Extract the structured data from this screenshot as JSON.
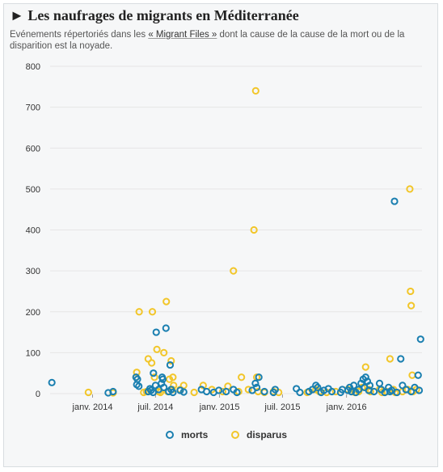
{
  "header": {
    "title": "► Les naufrages de migrants en Méditerranée",
    "subtitle_before": "Evénements répertoriés dans les ",
    "subtitle_link": "« Migrant Files »",
    "subtitle_after": " dont la cause de la cause de la mort ou de la disparition est la noyade."
  },
  "colors": {
    "morts": "#1a7fb0",
    "disparus": "#f2c62a",
    "grid": "#e6e6e6",
    "frame": "#d8dde0"
  },
  "chart_data": {
    "type": "scatter",
    "title": "► Les naufrages de migrants en Méditerranée",
    "xlabel": "",
    "ylabel": "",
    "ylim": [
      0,
      800
    ],
    "yticks": [
      0,
      100,
      200,
      300,
      400,
      500,
      600,
      700,
      800
    ],
    "xlim": [
      "2013-09-01",
      "2016-08-05"
    ],
    "xticks": [
      {
        "date": "2014-01-01",
        "label": "janv. 2014"
      },
      {
        "date": "2014-07-01",
        "label": "juil. 2014"
      },
      {
        "date": "2015-01-01",
        "label": "janv. 2015"
      },
      {
        "date": "2015-07-01",
        "label": "juil. 2015"
      },
      {
        "date": "2016-01-01",
        "label": "janv. 2016"
      }
    ],
    "grid": "horizontal",
    "legend_position": "bottom",
    "series": [
      {
        "name": "morts",
        "points": [
          {
            "x": "2013-09-06",
            "y": 27
          },
          {
            "x": "2014-02-15",
            "y": 2
          },
          {
            "x": "2014-03-01",
            "y": 5
          },
          {
            "x": "2014-05-06",
            "y": 40
          },
          {
            "x": "2014-05-08",
            "y": 22
          },
          {
            "x": "2014-05-10",
            "y": 35
          },
          {
            "x": "2014-05-14",
            "y": 18
          },
          {
            "x": "2014-06-10",
            "y": 5
          },
          {
            "x": "2014-06-15",
            "y": 12
          },
          {
            "x": "2014-06-18",
            "y": 8
          },
          {
            "x": "2014-06-24",
            "y": 3
          },
          {
            "x": "2014-06-25",
            "y": 50
          },
          {
            "x": "2014-07-01",
            "y": 20
          },
          {
            "x": "2014-07-03",
            "y": 150
          },
          {
            "x": "2014-07-10",
            "y": 10
          },
          {
            "x": "2014-07-18",
            "y": 25
          },
          {
            "x": "2014-07-20",
            "y": 40
          },
          {
            "x": "2014-07-22",
            "y": 35
          },
          {
            "x": "2014-07-25",
            "y": 15
          },
          {
            "x": "2014-07-31",
            "y": 160
          },
          {
            "x": "2014-08-08",
            "y": 5
          },
          {
            "x": "2014-08-12",
            "y": 70
          },
          {
            "x": "2014-08-15",
            "y": 10
          },
          {
            "x": "2014-08-20",
            "y": 3
          },
          {
            "x": "2014-09-10",
            "y": 8
          },
          {
            "x": "2014-09-20",
            "y": 4
          },
          {
            "x": "2014-11-10",
            "y": 10
          },
          {
            "x": "2014-11-25",
            "y": 5
          },
          {
            "x": "2014-12-15",
            "y": 3
          },
          {
            "x": "2014-12-30",
            "y": 8
          },
          {
            "x": "2015-01-20",
            "y": 5
          },
          {
            "x": "2015-02-10",
            "y": 10
          },
          {
            "x": "2015-02-20",
            "y": 3
          },
          {
            "x": "2015-04-05",
            "y": 8
          },
          {
            "x": "2015-04-14",
            "y": 25
          },
          {
            "x": "2015-04-18",
            "y": 15
          },
          {
            "x": "2015-04-24",
            "y": 40
          },
          {
            "x": "2015-05-10",
            "y": 5
          },
          {
            "x": "2015-06-05",
            "y": 3
          },
          {
            "x": "2015-06-10",
            "y": 10
          },
          {
            "x": "2015-08-10",
            "y": 12
          },
          {
            "x": "2015-08-20",
            "y": 3
          },
          {
            "x": "2015-09-15",
            "y": 5
          },
          {
            "x": "2015-09-25",
            "y": 10
          },
          {
            "x": "2015-10-05",
            "y": 20
          },
          {
            "x": "2015-10-10",
            "y": 15
          },
          {
            "x": "2015-10-20",
            "y": 3
          },
          {
            "x": "2015-10-28",
            "y": 8
          },
          {
            "x": "2015-11-10",
            "y": 12
          },
          {
            "x": "2015-11-20",
            "y": 5
          },
          {
            "x": "2015-12-15",
            "y": 3
          },
          {
            "x": "2015-12-20",
            "y": 10
          },
          {
            "x": "2016-01-05",
            "y": 8
          },
          {
            "x": "2016-01-10",
            "y": 15
          },
          {
            "x": "2016-01-15",
            "y": 5
          },
          {
            "x": "2016-01-22",
            "y": 20
          },
          {
            "x": "2016-01-28",
            "y": 3
          },
          {
            "x": "2016-02-05",
            "y": 10
          },
          {
            "x": "2016-02-12",
            "y": 25
          },
          {
            "x": "2016-02-18",
            "y": 35
          },
          {
            "x": "2016-02-22",
            "y": 15
          },
          {
            "x": "2016-02-25",
            "y": 40
          },
          {
            "x": "2016-03-01",
            "y": 30
          },
          {
            "x": "2016-03-05",
            "y": 8
          },
          {
            "x": "2016-03-08",
            "y": 20
          },
          {
            "x": "2016-03-20",
            "y": 5
          },
          {
            "x": "2016-04-05",
            "y": 25
          },
          {
            "x": "2016-04-10",
            "y": 10
          },
          {
            "x": "2016-04-20",
            "y": 3
          },
          {
            "x": "2016-05-01",
            "y": 15
          },
          {
            "x": "2016-05-05",
            "y": 5
          },
          {
            "x": "2016-05-10",
            "y": 8
          },
          {
            "x": "2016-05-18",
            "y": 470
          },
          {
            "x": "2016-05-25",
            "y": 3
          },
          {
            "x": "2016-06-05",
            "y": 85
          },
          {
            "x": "2016-06-10",
            "y": 20
          },
          {
            "x": "2016-06-20",
            "y": 10
          },
          {
            "x": "2016-07-05",
            "y": 5
          },
          {
            "x": "2016-07-15",
            "y": 15
          },
          {
            "x": "2016-07-25",
            "y": 45
          },
          {
            "x": "2016-07-28",
            "y": 8
          },
          {
            "x": "2016-08-01",
            "y": 133
          }
        ]
      },
      {
        "name": "disparus",
        "points": [
          {
            "x": "2013-12-20",
            "y": 3
          },
          {
            "x": "2014-03-01",
            "y": 2
          },
          {
            "x": "2014-05-06",
            "y": 40
          },
          {
            "x": "2014-05-08",
            "y": 52
          },
          {
            "x": "2014-05-15",
            "y": 200
          },
          {
            "x": "2014-05-28",
            "y": 3
          },
          {
            "x": "2014-06-05",
            "y": 5
          },
          {
            "x": "2014-06-10",
            "y": 85
          },
          {
            "x": "2014-06-20",
            "y": 75
          },
          {
            "x": "2014-06-22",
            "y": 200
          },
          {
            "x": "2014-06-28",
            "y": 40
          },
          {
            "x": "2014-07-05",
            "y": 108
          },
          {
            "x": "2014-07-10",
            "y": 5
          },
          {
            "x": "2014-07-15",
            "y": 3
          },
          {
            "x": "2014-07-25",
            "y": 100
          },
          {
            "x": "2014-08-01",
            "y": 225
          },
          {
            "x": "2014-08-05",
            "y": 5
          },
          {
            "x": "2014-08-10",
            "y": 35
          },
          {
            "x": "2014-08-15",
            "y": 80
          },
          {
            "x": "2014-08-18",
            "y": 10
          },
          {
            "x": "2014-08-20",
            "y": 40
          },
          {
            "x": "2014-08-22",
            "y": 20
          },
          {
            "x": "2014-09-10",
            "y": 10
          },
          {
            "x": "2014-09-20",
            "y": 20
          },
          {
            "x": "2014-10-20",
            "y": 3
          },
          {
            "x": "2014-11-15",
            "y": 20
          },
          {
            "x": "2014-12-10",
            "y": 10
          },
          {
            "x": "2015-01-10",
            "y": 5
          },
          {
            "x": "2015-01-25",
            "y": 18
          },
          {
            "x": "2015-02-10",
            "y": 300
          },
          {
            "x": "2015-02-25",
            "y": 5
          },
          {
            "x": "2015-03-05",
            "y": 40
          },
          {
            "x": "2015-03-25",
            "y": 10
          },
          {
            "x": "2015-04-10",
            "y": 400
          },
          {
            "x": "2015-04-15",
            "y": 740
          },
          {
            "x": "2015-04-18",
            "y": 40
          },
          {
            "x": "2015-04-22",
            "y": 5
          },
          {
            "x": "2015-05-10",
            "y": 3
          },
          {
            "x": "2015-06-05",
            "y": 5
          },
          {
            "x": "2015-06-20",
            "y": 3
          },
          {
            "x": "2015-09-10",
            "y": 3
          },
          {
            "x": "2015-10-05",
            "y": 10
          },
          {
            "x": "2015-10-15",
            "y": 5
          },
          {
            "x": "2015-11-05",
            "y": 3
          },
          {
            "x": "2015-12-01",
            "y": 5
          },
          {
            "x": "2016-01-05",
            "y": 10
          },
          {
            "x": "2016-01-15",
            "y": 5
          },
          {
            "x": "2016-01-25",
            "y": 3
          },
          {
            "x": "2016-02-05",
            "y": 5
          },
          {
            "x": "2016-02-15",
            "y": 15
          },
          {
            "x": "2016-02-25",
            "y": 65
          },
          {
            "x": "2016-03-05",
            "y": 10
          },
          {
            "x": "2016-03-10",
            "y": 5
          },
          {
            "x": "2016-04-05",
            "y": 10
          },
          {
            "x": "2016-04-12",
            "y": 3
          },
          {
            "x": "2016-04-25",
            "y": 5
          },
          {
            "x": "2016-05-05",
            "y": 85
          },
          {
            "x": "2016-05-15",
            "y": 10
          },
          {
            "x": "2016-05-20",
            "y": 3
          },
          {
            "x": "2016-06-10",
            "y": 5
          },
          {
            "x": "2016-06-25",
            "y": 10
          },
          {
            "x": "2016-07-01",
            "y": 500
          },
          {
            "x": "2016-07-03",
            "y": 250
          },
          {
            "x": "2016-07-05",
            "y": 215
          },
          {
            "x": "2016-07-08",
            "y": 45
          },
          {
            "x": "2016-07-10",
            "y": 5
          },
          {
            "x": "2016-07-20",
            "y": 10
          }
        ]
      }
    ]
  }
}
